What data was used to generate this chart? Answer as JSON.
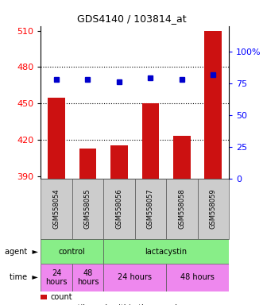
{
  "title": "GDS4140 / 103814_at",
  "samples": [
    "GSM558054",
    "GSM558055",
    "GSM558056",
    "GSM558057",
    "GSM558058",
    "GSM558059"
  ],
  "bar_values": [
    455,
    413,
    415,
    450,
    423,
    510
  ],
  "bar_color": "#cc1111",
  "percentile_values": [
    470,
    470,
    468,
    471,
    470,
    474
  ],
  "percentile_color": "#0000cc",
  "ylim_left": [
    388,
    514
  ],
  "yticks_left": [
    390,
    420,
    450,
    480,
    510
  ],
  "ylim_right": [
    0,
    120
  ],
  "yticks_right": [
    0,
    25,
    50,
    75,
    100
  ],
  "ytick_right_labels": [
    "0",
    "25",
    "50",
    "75",
    "100%"
  ],
  "grid_lines": [
    420,
    450,
    480
  ],
  "agent_groups": [
    {
      "label": "control",
      "color": "#88ee88",
      "start": 0,
      "end": 2
    },
    {
      "label": "lactacystin",
      "color": "#88ee88",
      "start": 2,
      "end": 6
    }
  ],
  "time_groups": [
    {
      "label": "24\nhours",
      "color": "#ee88ee",
      "start": 0,
      "end": 1
    },
    {
      "label": "48\nhours",
      "color": "#ee88ee",
      "start": 1,
      "end": 2
    },
    {
      "label": "24 hours",
      "color": "#ee88ee",
      "start": 2,
      "end": 4
    },
    {
      "label": "48 hours",
      "color": "#ee88ee",
      "start": 4,
      "end": 6
    }
  ],
  "legend_count_color": "#cc1111",
  "legend_pct_color": "#0000cc",
  "bar_width": 0.55,
  "background_color": "#ffffff",
  "sample_box_color": "#cccccc",
  "title_fontsize": 9,
  "bar_label_fontsize": 6,
  "annotation_fontsize": 7,
  "legend_fontsize": 7
}
